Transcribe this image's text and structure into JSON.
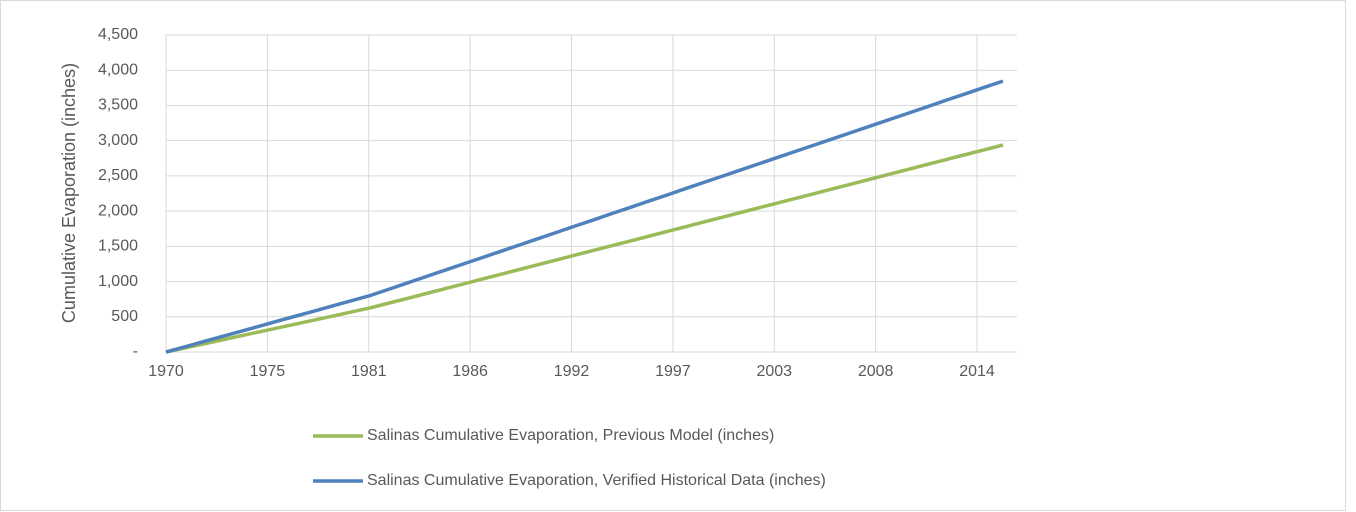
{
  "chart_data": {
    "type": "line",
    "y_label": "Cumulative Evaporation (inches)",
    "x": [
      1970,
      1971,
      1972,
      1973,
      1974,
      1975,
      1976,
      1977,
      1978,
      1979,
      1980,
      1981,
      1982,
      1983,
      1984,
      1985,
      1986,
      1987,
      1988,
      1989,
      1990,
      1991,
      1992,
      1993,
      1994,
      1995,
      1996,
      1997,
      1998,
      1999,
      2000,
      2001,
      2002,
      2003,
      2004,
      2005,
      2006,
      2007,
      2008,
      2009,
      2010,
      2011,
      2012,
      2013,
      2014,
      2015
    ],
    "series": [
      {
        "name": "Salinas Cumulative Evaporation, Previous Model (inches)",
        "color": "#9bbb59",
        "values": [
          0,
          57,
          114,
          171,
          228,
          285,
          342,
          399,
          456,
          513,
          570,
          627,
          695,
          763,
          831,
          899,
          967,
          1035,
          1103,
          1171,
          1239,
          1307,
          1375,
          1443,
          1511,
          1579,
          1647,
          1715,
          1783,
          1851,
          1919,
          1987,
          2055,
          2123,
          2191,
          2259,
          2327,
          2395,
          2463,
          2531,
          2599,
          2667,
          2735,
          2803,
          2871,
          2939
        ]
      },
      {
        "name": "Salinas Cumulative Evaporation, Verified Historical Data (inches)",
        "color": "#4f81bd",
        "values": [
          0,
          73,
          146,
          219,
          292,
          365,
          438,
          511,
          584,
          657,
          730,
          803,
          893,
          982,
          1072,
          1161,
          1251,
          1340,
          1430,
          1519,
          1609,
          1698,
          1788,
          1877,
          1967,
          2056,
          2146,
          2235,
          2325,
          2414,
          2504,
          2593,
          2683,
          2772,
          2862,
          2951,
          3041,
          3130,
          3220,
          3309,
          3399,
          3488,
          3578,
          3667,
          3757,
          3846
        ]
      }
    ],
    "xlim": [
      1970,
      2015.75
    ],
    "xticks": [
      {
        "value": 1970,
        "label": "1970"
      },
      {
        "value": 1975.45,
        "label": "1975"
      },
      {
        "value": 1980.9,
        "label": "1981"
      },
      {
        "value": 1986.35,
        "label": "1986"
      },
      {
        "value": 1991.8,
        "label": "1992"
      },
      {
        "value": 1997.25,
        "label": "1997"
      },
      {
        "value": 2002.7,
        "label": "2003"
      },
      {
        "value": 2008.15,
        "label": "2008"
      },
      {
        "value": 2013.6,
        "label": "2014"
      }
    ],
    "ylim": [
      0,
      4500
    ],
    "yticks": [
      {
        "value": 0,
        "label": "-"
      },
      {
        "value": 500,
        "label": "500"
      },
      {
        "value": 1000,
        "label": "1,000"
      },
      {
        "value": 1500,
        "label": "1,500"
      },
      {
        "value": 2000,
        "label": "2,000"
      },
      {
        "value": 2500,
        "label": "2,500"
      },
      {
        "value": 3000,
        "label": "3,000"
      },
      {
        "value": 3500,
        "label": "3,500"
      },
      {
        "value": 4000,
        "label": "4,000"
      },
      {
        "value": 4500,
        "label": "4,500"
      }
    ],
    "grid": true,
    "legend": "bottom"
  }
}
